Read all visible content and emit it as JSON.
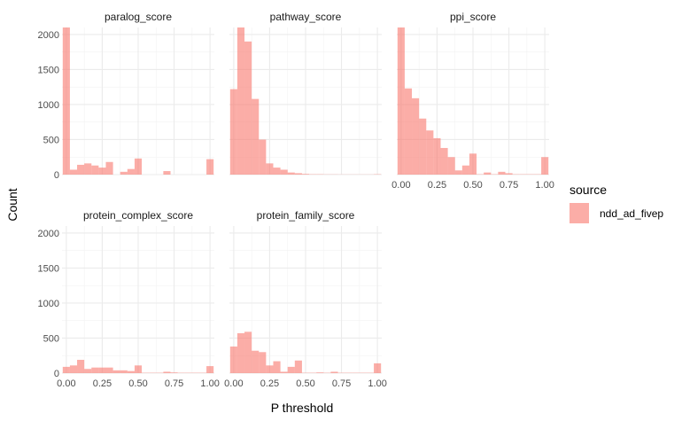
{
  "chart_data": {
    "type": "histogram",
    "xlabel": "P threshold",
    "ylabel": "Count",
    "xlim": [
      -0.03,
      1.03
    ],
    "ylim": [
      0,
      2100
    ],
    "x_ticks": [
      0.0,
      0.25,
      0.5,
      0.75,
      1.0
    ],
    "x_tick_labels": [
      "0.00",
      "0.25",
      "0.50",
      "0.75",
      "1.00"
    ],
    "y_ticks": [
      0,
      500,
      1000,
      1500,
      2000
    ],
    "y_tick_labels": [
      "0",
      "500",
      "1000",
      "1500",
      "2000"
    ],
    "bin_width": 0.05,
    "bin_centers": [
      0.0,
      0.05,
      0.1,
      0.15,
      0.2,
      0.25,
      0.3,
      0.35,
      0.4,
      0.45,
      0.5,
      0.55,
      0.6,
      0.65,
      0.7,
      0.75,
      0.8,
      0.85,
      0.9,
      0.95,
      1.0
    ],
    "grid": true,
    "legend": {
      "title": "source",
      "position": "right",
      "entries": [
        {
          "label": "ndd_ad_fivep",
          "color": "#f8766d"
        }
      ]
    },
    "panels": [
      {
        "name": "paralog_score",
        "values": [
          2100,
          70,
          140,
          160,
          130,
          100,
          180,
          0,
          40,
          80,
          230,
          0,
          0,
          0,
          50,
          0,
          0,
          0,
          0,
          0,
          220
        ]
      },
      {
        "name": "pathway_score",
        "values": [
          1220,
          2100,
          1900,
          1080,
          500,
          160,
          100,
          70,
          30,
          20,
          10,
          5,
          5,
          3,
          3,
          2,
          2,
          2,
          2,
          2,
          5
        ]
      },
      {
        "name": "ppi_score",
        "values": [
          2100,
          1230,
          1090,
          800,
          630,
          520,
          380,
          250,
          60,
          130,
          300,
          5,
          30,
          5,
          40,
          20,
          5,
          5,
          5,
          5,
          250
        ]
      },
      {
        "name": "protein_complex_score",
        "values": [
          90,
          110,
          190,
          60,
          80,
          80,
          80,
          40,
          40,
          30,
          110,
          5,
          5,
          5,
          20,
          10,
          5,
          5,
          5,
          5,
          100
        ]
      },
      {
        "name": "protein_family_score",
        "values": [
          380,
          570,
          590,
          320,
          300,
          110,
          170,
          20,
          90,
          180,
          5,
          5,
          10,
          5,
          20,
          5,
          5,
          5,
          5,
          5,
          140
        ]
      }
    ]
  }
}
